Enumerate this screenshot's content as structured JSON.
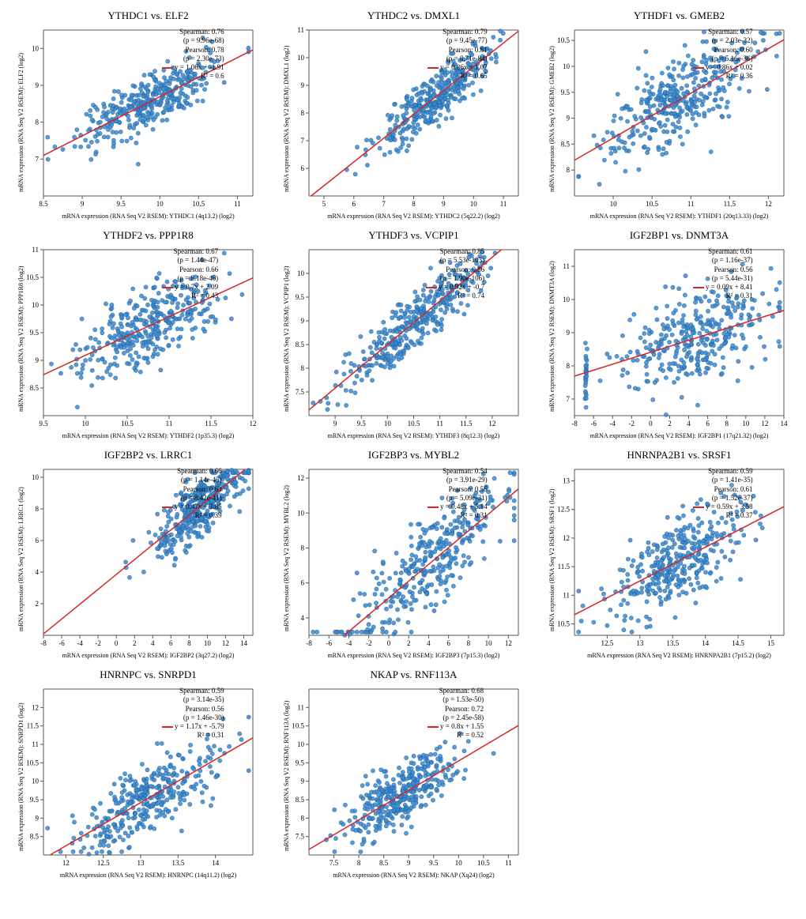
{
  "global": {
    "point_fill": "#3b8bd1",
    "point_stroke": "#1f5f9c",
    "point_r": 2.6,
    "point_opacity": 0.85,
    "line_color": "#d62728",
    "axis_color": "#555555",
    "tick_font_size": 9,
    "n_points": 350,
    "seed": 7
  },
  "panels": [
    {
      "title": "YTHDC1 vs. ELF2",
      "xlabel": "mRNA expression (RNA Seq V2 RSEM): YTHDC1 (4q13.2) (log2)",
      "ylabel": "mRNA expression (RNA Seq V2 RSEM): ELF2 (log2)",
      "xlim": [
        8.5,
        11.2
      ],
      "xticks": [
        8.5,
        9,
        9.5,
        10,
        10.5,
        11
      ],
      "ylim": [
        6,
        10.5
      ],
      "yticks": [
        7,
        8,
        9,
        10
      ],
      "slope": 1.06,
      "intercept": -1.91,
      "sigma": 0.35,
      "spearman": "0.76",
      "sp_p": "9.96e-68",
      "pearson": "0.78",
      "pe_p": "2.30e-73",
      "eq": "y = 1.06x + -1.91",
      "r2": "0.6",
      "stats_at": [
        195,
        25
      ]
    },
    {
      "title": "YTHDC2 vs. DMXL1",
      "xlabel": "mRNA expression (RNA Seq V2 RSEM): YTHDC2 (5q22.2) (log2)",
      "ylabel": "mRNA expression (RNA Seq V2 RSEM): DMXL1 (log2)",
      "xlim": [
        4.5,
        11.5
      ],
      "xticks": [
        5,
        6,
        7,
        8,
        9,
        10,
        11
      ],
      "ylim": [
        5,
        11
      ],
      "yticks": [
        6,
        7,
        8,
        9,
        10,
        11
      ],
      "slope": 0.86,
      "intercept": 1.07,
      "sigma": 0.45,
      "x_center": 8.7,
      "x_spread": 0.9,
      "spearman": "0.79",
      "sp_p": "9.45e-77",
      "pearson": "0.81",
      "pe_p": "8.71e-84",
      "eq": "y = 0.86x + 1.07",
      "r2": "0.65",
      "stats_at": [
        195,
        25
      ]
    },
    {
      "title": "YTHDF1 vs. GMEB2",
      "xlabel": "mRNA expression (RNA Seq V2 RSEM): YTHDF1 (20q13.33) (log2)",
      "ylabel": "mRNA expression (RNA Seq V2 RSEM): GMEB2 (log2)",
      "xlim": [
        9.5,
        12.2
      ],
      "xticks": [
        10,
        10.5,
        11,
        11.5,
        12
      ],
      "ylim": [
        7.5,
        10.7
      ],
      "yticks": [
        8,
        8.5,
        9,
        9.5,
        10,
        10.5
      ],
      "slope": 0.86,
      "intercept": 0.02,
      "sigma": 0.4,
      "spearman": "0.57",
      "sp_p": "2.03e-32",
      "pearson": "0.60",
      "pe_p": "5.16e-36",
      "eq": "y = 0.86x + 0.02",
      "r2": "0.36",
      "stats_at": [
        195,
        25
      ]
    },
    {
      "title": "YTHDF2 vs. PPP1R8",
      "xlabel": "mRNA expression (RNA Seq V2 RSEM): YTHDF2 (1p35.3) (log2)",
      "ylabel": "mRNA expression (RNA Seq V2 RSEM): PPP1R8 (log2)",
      "xlim": [
        9.5,
        12
      ],
      "xticks": [
        9.5,
        10,
        10.5,
        11,
        11.5,
        12
      ],
      "ylim": [
        8,
        11
      ],
      "yticks": [
        8.5,
        9,
        9.5,
        10,
        10.5,
        11
      ],
      "slope": 0.7,
      "intercept": 2.09,
      "sigma": 0.35,
      "spearman": "0.67",
      "sp_p": "1.44e-47",
      "pearson": "0.66",
      "pe_p": "8.18e-46",
      "eq": "y = 0.7x + 2.09",
      "r2": "0.43",
      "stats_at": [
        195,
        25
      ]
    },
    {
      "title": "YTHDF3 vs. VCPIP1",
      "xlabel": "mRNA expression (RNA Seq V2 RSEM): YTHDF3 (8q12.3) (log2)",
      "ylabel": "mRNA expression (RNA Seq V2 RSEM): VCPIP1 (log2)",
      "xlim": [
        8.5,
        12.5
      ],
      "xticks": [
        9,
        9.5,
        10,
        10.5,
        11,
        11.5,
        12
      ],
      "ylim": [
        7,
        10.5
      ],
      "yticks": [
        7.5,
        8,
        8.5,
        9,
        9.5,
        10
      ],
      "slope": 0.92,
      "intercept": -0.7,
      "sigma": 0.3,
      "spearman": "0.85",
      "sp_p": "5.53e-103",
      "pearson": "0.86",
      "pe_p": "1.90e-106",
      "eq": "y = 0.92x + -0.7",
      "r2": "0.74",
      "stats_at": [
        193,
        25
      ]
    },
    {
      "title": "IGF2BP1 vs. DNMT3A",
      "xlabel": "mRNA expression (RNA Seq V2 RSEM): IGF2BP1 (17q21.32) (log2)",
      "ylabel": "mRNA expression (RNA Seq V2 RSEM): DNMT3A (log2)",
      "xlim": [
        -8,
        14
      ],
      "xticks": [
        -8,
        -6,
        -4,
        -2,
        0,
        2,
        4,
        6,
        8,
        10,
        12,
        14
      ],
      "ylim": [
        6.5,
        11.5
      ],
      "yticks": [
        7,
        8,
        9,
        10,
        11
      ],
      "slope": 0.09,
      "intercept": 8.41,
      "sigma": 0.7,
      "x_center": 5,
      "x_spread": 4,
      "spearman": "0.61",
      "sp_p": "1.16e-37",
      "pearson": "0.56",
      "pe_p": "5.44e-31",
      "eq": "y = 0.09x + 8.41",
      "r2": "0.31",
      "stats_at": [
        195,
        25
      ],
      "cluster_x": -6.8,
      "cluster_n": 25
    },
    {
      "title": "IGF2BP2 vs. LRRC1",
      "xlabel": "mRNA expression (RNA Seq V2 RSEM): IGF2BP2 (3q27.2) (log2)",
      "ylabel": "mRNA expression (RNA Seq V2 RSEM): LRRC1 (log2)",
      "xlim": [
        -8,
        15
      ],
      "xticks": [
        -8,
        -6,
        -4,
        -2,
        0,
        2,
        4,
        6,
        8,
        10,
        12,
        14
      ],
      "ylim": [
        0,
        10.5
      ],
      "yticks": [
        2,
        4,
        6,
        8,
        10
      ],
      "slope": 0.47,
      "intercept": 3.85,
      "sigma": 0.9,
      "x_center": 9,
      "x_spread": 2.5,
      "spearman": "0.66",
      "sp_p": "1.14e-45",
      "pearson": "0.63",
      "pe_p": "8.42e-41",
      "eq": "y = 0.47x + 3.85",
      "r2": "0.39",
      "stats_at": [
        195,
        25
      ]
    },
    {
      "title": "IGF2BP3 vs. MYBL2",
      "xlabel": "mRNA expression (RNA Seq V2 RSEM): IGF2BP3 (7p15.3) (log2)",
      "ylabel": "mRNA expression (RNA Seq V2 RSEM): MYBL2 (log2)",
      "xlim": [
        -8,
        13
      ],
      "xticks": [
        -8,
        -6,
        -4,
        -2,
        0,
        2,
        4,
        6,
        8,
        10,
        12
      ],
      "ylim": [
        3,
        12.5
      ],
      "yticks": [
        4,
        6,
        8,
        10,
        12
      ],
      "slope": 0.48,
      "intercept": 5.14,
      "sigma": 1.3,
      "x_center": 4,
      "x_spread": 4,
      "spearman": "0.54",
      "sp_p": "3.91e-29",
      "pearson": "0.56",
      "pe_p": "5.09e-31",
      "eq": "y = 0.48x + 5.14",
      "r2": "0.31",
      "stats_at": [
        195,
        25
      ]
    },
    {
      "title": "HNRNPA2B1 vs. SRSF1",
      "xlabel": "mRNA expression (RNA Seq V2 RSEM): HNRNPA2B1 (7p15.2) (log2)",
      "ylabel": "mRNA expression (RNA Seq V2 RSEM): SRSF1 (log2)",
      "xlim": [
        12,
        15.2
      ],
      "xticks": [
        12.5,
        13,
        13.5,
        14,
        14.5,
        15
      ],
      "ylim": [
        10.3,
        13.2
      ],
      "yticks": [
        10.5,
        11,
        11.5,
        12,
        12.5,
        13
      ],
      "slope": 0.59,
      "intercept": 3.58,
      "sigma": 0.35,
      "spearman": "0.59",
      "sp_p": "1.41e-35",
      "pearson": "0.61",
      "pe_p": "1.52e-37",
      "eq": "y = 0.59x + 3.58",
      "r2": "0.37",
      "stats_at": [
        195,
        25
      ]
    },
    {
      "title": "HNRNPC vs. SNRPD1",
      "xlabel": "mRNA expression (RNA Seq V2 RSEM): HNRNPC (14q11.2) (log2)",
      "ylabel": "mRNA expression (RNA Seq V2 RSEM): SNRPD1 (log2)",
      "xlim": [
        11.7,
        14.5
      ],
      "xticks": [
        12,
        12.5,
        13,
        13.5,
        14
      ],
      "ylim": [
        8,
        12.5
      ],
      "yticks": [
        8.5,
        9,
        9.5,
        10,
        10.5,
        11,
        11.5,
        12
      ],
      "slope": 1.17,
      "intercept": -5.79,
      "sigma": 0.5,
      "spearman": "0.59",
      "sp_p": "3.14e-35",
      "pearson": "0.56",
      "pe_p": "1.46e-30",
      "eq": "y = 1.17x + -5.79",
      "r2": "0.31",
      "stats_at": [
        195,
        25
      ]
    },
    {
      "title": "NKAP vs. RNF113A",
      "xlabel": "mRNA expression (RNA Seq V2 RSEM): NKAP (Xq24) (log2)",
      "ylabel": "mRNA expression (RNA Seq V2 RSEM): RNF113A (log2)",
      "xlim": [
        7,
        11.2
      ],
      "xticks": [
        7.5,
        8,
        8.5,
        9,
        9.5,
        10,
        10.5,
        11
      ],
      "ylim": [
        7,
        11.5
      ],
      "yticks": [
        7.5,
        8,
        8.5,
        9,
        9.5,
        10,
        10.5,
        11
      ],
      "slope": 0.8,
      "intercept": 1.55,
      "sigma": 0.4,
      "x_center": 8.8,
      "x_spread": 0.55,
      "spearman": "0.68",
      "sp_p": "1.53e-50",
      "pearson": "0.72",
      "pe_p": "2.45e-58",
      "eq": "y = 0.8x + 1.55",
      "r2": "0.52",
      "stats_at": [
        195,
        25
      ]
    }
  ]
}
